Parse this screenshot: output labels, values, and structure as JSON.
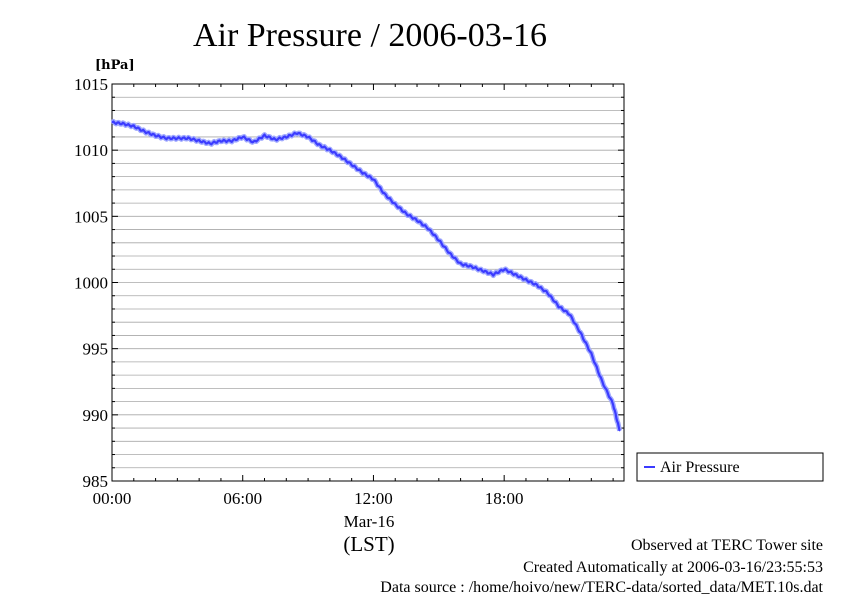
{
  "chart_data": {
    "type": "line",
    "title": "Air Pressure / 2006-03-16",
    "ylabel": "[hPa]",
    "xlabel": "(LST)",
    "date_label": "Mar-16",
    "ylim": [
      985,
      1015
    ],
    "xlim_hours": [
      0,
      23.5
    ],
    "y_ticks": [
      985,
      990,
      995,
      1000,
      1005,
      1010,
      1015
    ],
    "y_tick_labels": [
      "985",
      "990",
      "995",
      "1000",
      "1005",
      "1010",
      "1015"
    ],
    "x_ticks_hours": [
      0,
      6,
      12,
      18
    ],
    "x_tick_labels": [
      "00:00",
      "06:00",
      "12:00",
      "18:00"
    ],
    "grid": true,
    "legend_position": "right",
    "series": [
      {
        "name": "Air Pressure",
        "color": "#3b3bff",
        "x": [
          0,
          0.5,
          1,
          1.5,
          2,
          2.5,
          3,
          3.5,
          4,
          4.5,
          5,
          5.5,
          6,
          6.5,
          7,
          7.5,
          8,
          8.5,
          9,
          9.5,
          10,
          10.5,
          11,
          11.5,
          12,
          12.5,
          13,
          13.5,
          14,
          14.5,
          15,
          15.5,
          16,
          16.5,
          17,
          17.5,
          18,
          18.5,
          19,
          19.5,
          20,
          20.5,
          21,
          21.5,
          22,
          22.5,
          23,
          23.3
        ],
        "values": [
          1012.1,
          1012.0,
          1011.8,
          1011.4,
          1011.1,
          1010.9,
          1010.9,
          1010.9,
          1010.7,
          1010.5,
          1010.7,
          1010.7,
          1011.0,
          1010.6,
          1011.1,
          1010.8,
          1011.0,
          1011.3,
          1011.0,
          1010.4,
          1010.0,
          1009.5,
          1008.9,
          1008.3,
          1007.8,
          1006.7,
          1005.9,
          1005.2,
          1004.7,
          1004.1,
          1003.2,
          1002.2,
          1001.4,
          1001.2,
          1000.9,
          1000.6,
          1001.0,
          1000.6,
          1000.2,
          999.8,
          999.2,
          998.2,
          997.6,
          996.2,
          994.6,
          992.5,
          990.8,
          988.8
        ]
      }
    ]
  },
  "footer": {
    "line1": "Observed at TERC Tower site",
    "line2": "Created Automatically at 2006-03-16/23:55:53",
    "line3": "Data source : /home/hoivo/new/TERC-data/sorted_data/MET.10s.dat"
  }
}
